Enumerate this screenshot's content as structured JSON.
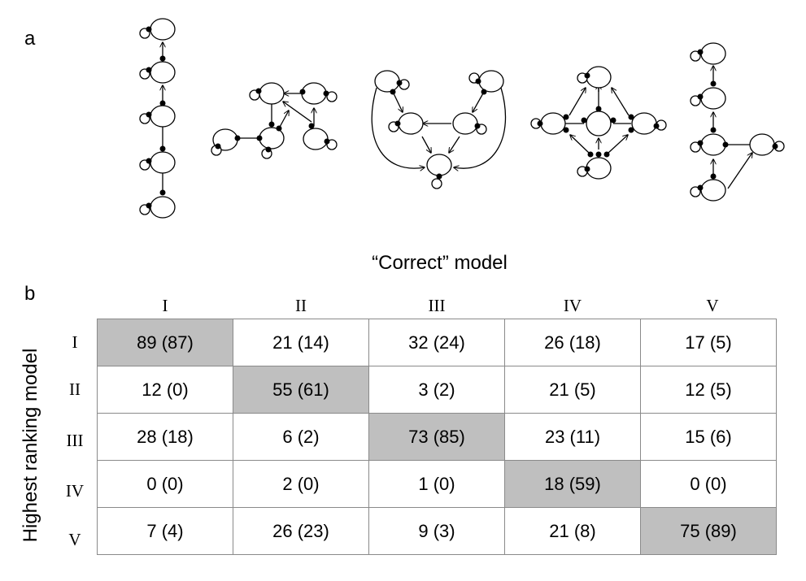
{
  "panel_a_label": "a",
  "panel_b_label": "b",
  "correct_model_title": "“Correct” model",
  "y_axis_label": "Highest ranking model",
  "columns": [
    "I",
    "II",
    "III",
    "IV",
    "V"
  ],
  "rows": [
    {
      "label": "I",
      "cells": [
        "89 (87)",
        "21 (14)",
        "32 (24)",
        "26 (18)",
        "17 (5)"
      ]
    },
    {
      "label": "II",
      "cells": [
        "12 (0)",
        "55 (61)",
        "3 (2)",
        "21 (5)",
        "12 (5)"
      ]
    },
    {
      "label": "III",
      "cells": [
        "28 (18)",
        "6 (2)",
        "73 (85)",
        "23 (11)",
        "15 (6)"
      ]
    },
    {
      "label": "IV",
      "cells": [
        "0 (0)",
        "2 (0)",
        "1 (0)",
        "18 (59)",
        "0 (0)"
      ]
    },
    {
      "label": "V",
      "cells": [
        "7 (4)",
        "26 (23)",
        "9 (3)",
        "21 (8)",
        "75 (89)"
      ]
    }
  ],
  "highlight": "diagonal",
  "colors": {
    "highlight": "#bfbfbf",
    "grid": "#8a8a8a",
    "ink": "#000000"
  }
}
